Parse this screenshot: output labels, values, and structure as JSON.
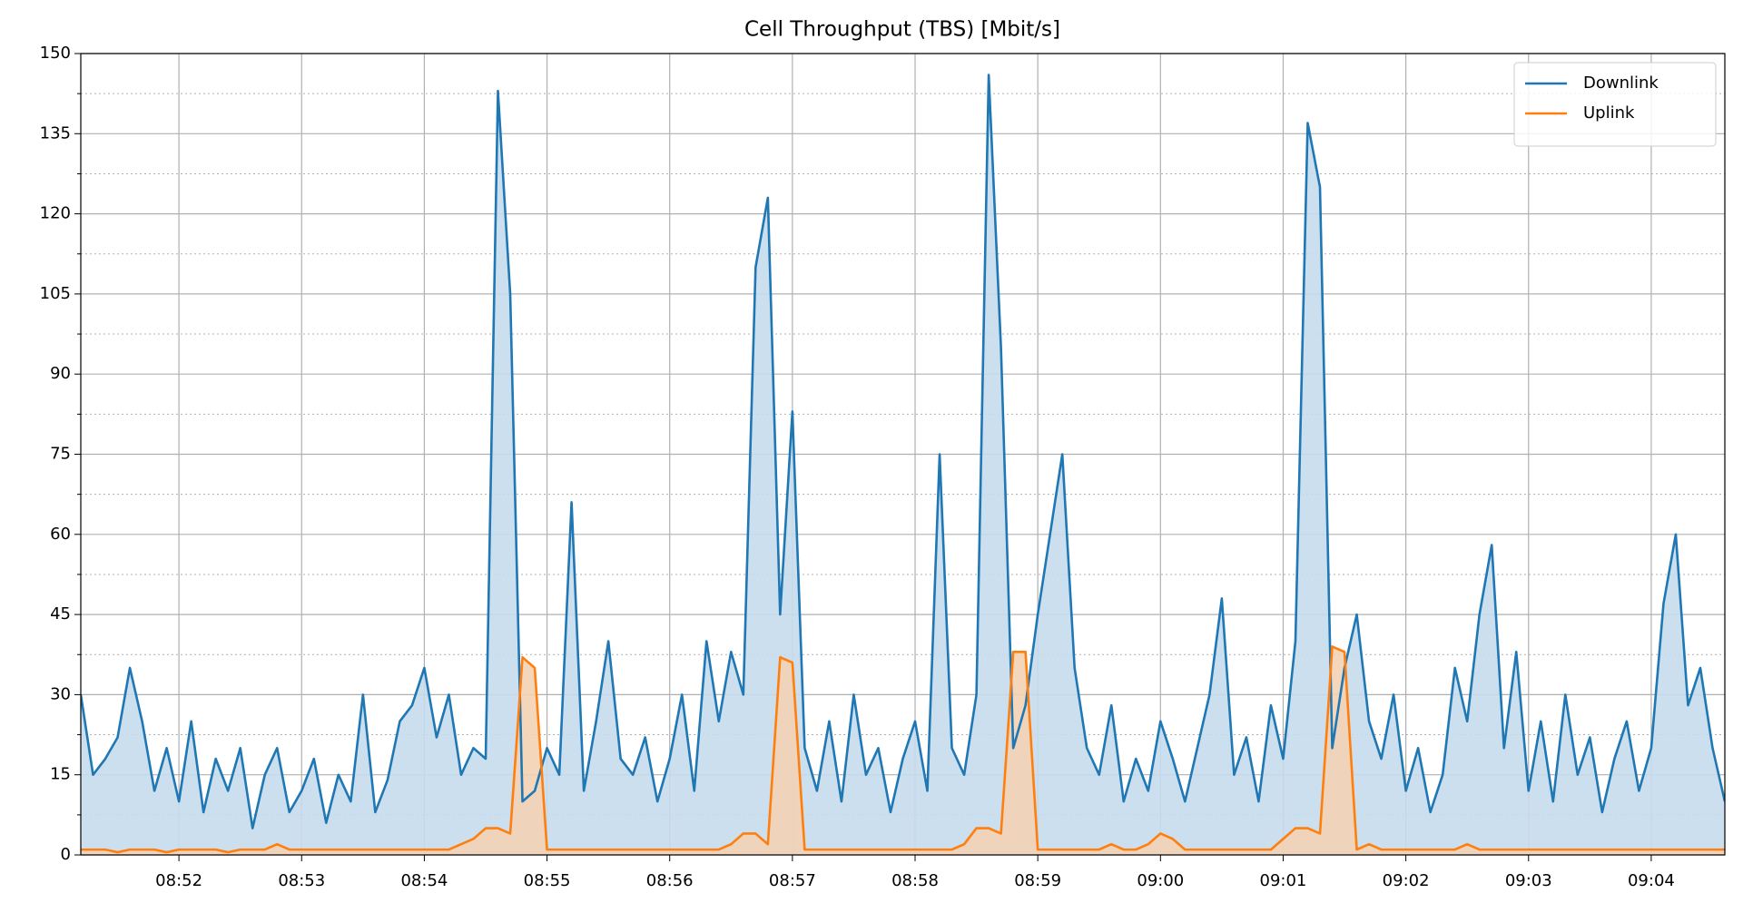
{
  "chart_data": {
    "type": "line",
    "title": "Cell Throughput (TBS) [Mbit/s]",
    "x": [
      51.2,
      51.3,
      51.4,
      51.5,
      51.6,
      51.7,
      51.8,
      51.9,
      52.0,
      52.1,
      52.2,
      52.3,
      52.4,
      52.5,
      52.6,
      52.7,
      52.8,
      52.9,
      53.0,
      53.1,
      53.2,
      53.3,
      53.4,
      53.5,
      53.6,
      53.7,
      53.8,
      53.9,
      54.0,
      54.1,
      54.2,
      54.3,
      54.4,
      54.5,
      54.6,
      54.7,
      54.8,
      54.9,
      55.0,
      55.1,
      55.2,
      55.3,
      55.4,
      55.5,
      55.6,
      55.7,
      55.8,
      55.9,
      56.0,
      56.1,
      56.2,
      56.3,
      56.4,
      56.5,
      56.6,
      56.7,
      56.8,
      56.9,
      57.0,
      57.1,
      57.2,
      57.3,
      57.4,
      57.5,
      57.6,
      57.7,
      57.8,
      57.9,
      58.0,
      58.1,
      58.2,
      58.3,
      58.4,
      58.5,
      58.6,
      58.7,
      58.8,
      58.9,
      59.0,
      59.1,
      59.2,
      59.3,
      59.4,
      59.5,
      59.6,
      59.7,
      59.8,
      59.9,
      60.0,
      60.1,
      60.2,
      60.3,
      60.4,
      60.5,
      60.6,
      60.7,
      60.8,
      60.9,
      61.0,
      61.1,
      61.2,
      61.3,
      61.4,
      61.5,
      61.6,
      61.7,
      61.8,
      61.9,
      62.0,
      62.1,
      62.2,
      62.3,
      62.4,
      62.5,
      62.6,
      62.7,
      62.8,
      62.9,
      63.0,
      63.1,
      63.2,
      63.3,
      63.4,
      63.5,
      63.6,
      63.7,
      63.8,
      63.9,
      64.0,
      64.1,
      64.2,
      64.3,
      64.4,
      64.5,
      64.6
    ],
    "series": [
      {
        "name": "Downlink",
        "color": "#1f77b4",
        "fill": "#c6dbec",
        "values": [
          30,
          15,
          18,
          22,
          35,
          25,
          12,
          20,
          10,
          25,
          8,
          18,
          12,
          20,
          5,
          15,
          20,
          8,
          12,
          18,
          6,
          15,
          10,
          30,
          8,
          14,
          25,
          28,
          35,
          22,
          30,
          15,
          20,
          18,
          143,
          105,
          10,
          12,
          20,
          15,
          66,
          12,
          25,
          40,
          18,
          15,
          22,
          10,
          18,
          30,
          12,
          40,
          25,
          38,
          30,
          110,
          123,
          45,
          83,
          20,
          12,
          25,
          10,
          30,
          15,
          20,
          8,
          18,
          25,
          12,
          75,
          20,
          15,
          30,
          146,
          95,
          20,
          28,
          45,
          60,
          75,
          35,
          20,
          15,
          28,
          10,
          18,
          12,
          25,
          18,
          10,
          20,
          30,
          48,
          15,
          22,
          10,
          28,
          18,
          40,
          137,
          125,
          20,
          35,
          45,
          25,
          18,
          30,
          12,
          20,
          8,
          15,
          35,
          25,
          45,
          58,
          20,
          38,
          12,
          25,
          10,
          30,
          15,
          22,
          8,
          18,
          25,
          12,
          20,
          47,
          60,
          28,
          35,
          20,
          10
        ]
      },
      {
        "name": "Uplink",
        "color": "#ff7f0e",
        "fill": "#f3d2b4",
        "values": [
          1,
          1,
          1,
          0.5,
          1,
          1,
          1,
          0.5,
          1,
          1,
          1,
          1,
          0.5,
          1,
          1,
          1,
          2,
          1,
          1,
          1,
          1,
          1,
          1,
          1,
          1,
          1,
          1,
          1,
          1,
          1,
          1,
          2,
          3,
          5,
          5,
          4,
          37,
          35,
          1,
          1,
          1,
          1,
          1,
          1,
          1,
          1,
          1,
          1,
          1,
          1,
          1,
          1,
          1,
          2,
          4,
          4,
          2,
          37,
          36,
          1,
          1,
          1,
          1,
          1,
          1,
          1,
          1,
          1,
          1,
          1,
          1,
          1,
          2,
          5,
          5,
          4,
          38,
          38,
          1,
          1,
          1,
          1,
          1,
          1,
          2,
          1,
          1,
          2,
          4,
          3,
          1,
          1,
          1,
          1,
          1,
          1,
          1,
          1,
          3,
          5,
          5,
          4,
          39,
          38,
          1,
          2,
          1,
          1,
          1,
          1,
          1,
          1,
          1,
          2,
          1,
          1,
          1,
          1,
          1,
          1,
          1,
          1,
          1,
          1,
          1,
          1,
          1,
          1,
          1,
          1,
          1,
          1,
          1,
          1,
          1
        ]
      }
    ],
    "xlim": [
      51.2,
      64.6
    ],
    "xticks": [
      {
        "value": 52,
        "label": "08:52"
      },
      {
        "value": 53,
        "label": "08:53"
      },
      {
        "value": 54,
        "label": "08:54"
      },
      {
        "value": 55,
        "label": "08:55"
      },
      {
        "value": 56,
        "label": "08:56"
      },
      {
        "value": 57,
        "label": "08:57"
      },
      {
        "value": 58,
        "label": "08:58"
      },
      {
        "value": 59,
        "label": "08:59"
      },
      {
        "value": 60,
        "label": "09:00"
      },
      {
        "value": 61,
        "label": "09:01"
      },
      {
        "value": 62,
        "label": "09:02"
      },
      {
        "value": 63,
        "label": "09:03"
      },
      {
        "value": 64,
        "label": "09:04"
      }
    ],
    "ylim": [
      0,
      150
    ],
    "yticks": [
      0,
      15,
      30,
      45,
      60,
      75,
      90,
      105,
      120,
      135,
      150
    ],
    "yminorticks": [
      7.5,
      22.5,
      37.5,
      52.5,
      67.5,
      82.5,
      97.5,
      112.5,
      127.5,
      142.5
    ],
    "grid": true,
    "fill_under": true,
    "legend": "upper right"
  }
}
